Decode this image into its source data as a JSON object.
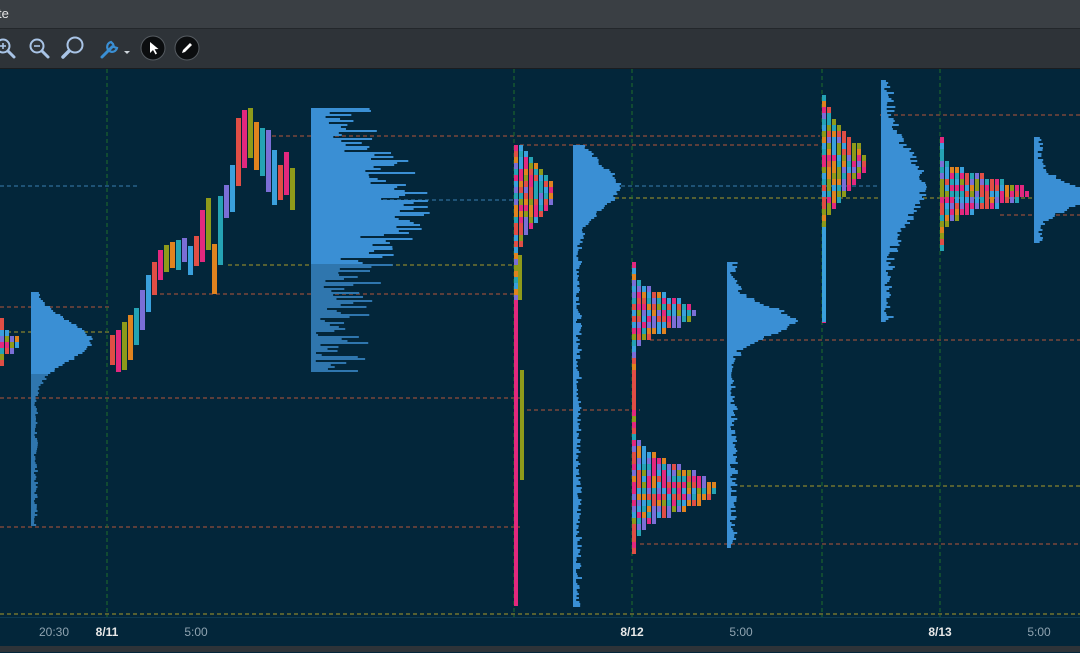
{
  "window": {
    "title": "te"
  },
  "toolbar": {
    "tools": [
      {
        "icon": "zoom-in-icon"
      },
      {
        "icon": "zoom-out-icon"
      },
      {
        "icon": "zoom-fit-icon"
      },
      {
        "icon": "wrench-dropdown-icon"
      },
      {
        "icon": "cursor-arrow-icon"
      },
      {
        "icon": "pencil-draw-icon"
      }
    ]
  },
  "axis": {
    "labels": [
      {
        "text": "20:30",
        "kind": "time"
      },
      {
        "text": "8/11",
        "kind": "date"
      },
      {
        "text": "5:00",
        "kind": "time"
      },
      {
        "text": "8/12",
        "kind": "date"
      },
      {
        "text": "5:00",
        "kind": "time"
      },
      {
        "text": "8/13",
        "kind": "date"
      },
      {
        "text": "5:00",
        "kind": "time"
      }
    ]
  },
  "colors": {
    "background": "#03263a",
    "profile": "#3a8fd4",
    "profile_lower": "#2f76ae",
    "session_line": "#1f6e2a",
    "level_red": "#b4553a",
    "level_yellow": "#a89a2a",
    "level_blue": "#3a7eb0",
    "tpo": [
      "#e04e45",
      "#e2287e",
      "#8e9a1a",
      "#e0831f",
      "#25a3b4",
      "#7b6ed6",
      "#3aa0dc"
    ]
  }
}
